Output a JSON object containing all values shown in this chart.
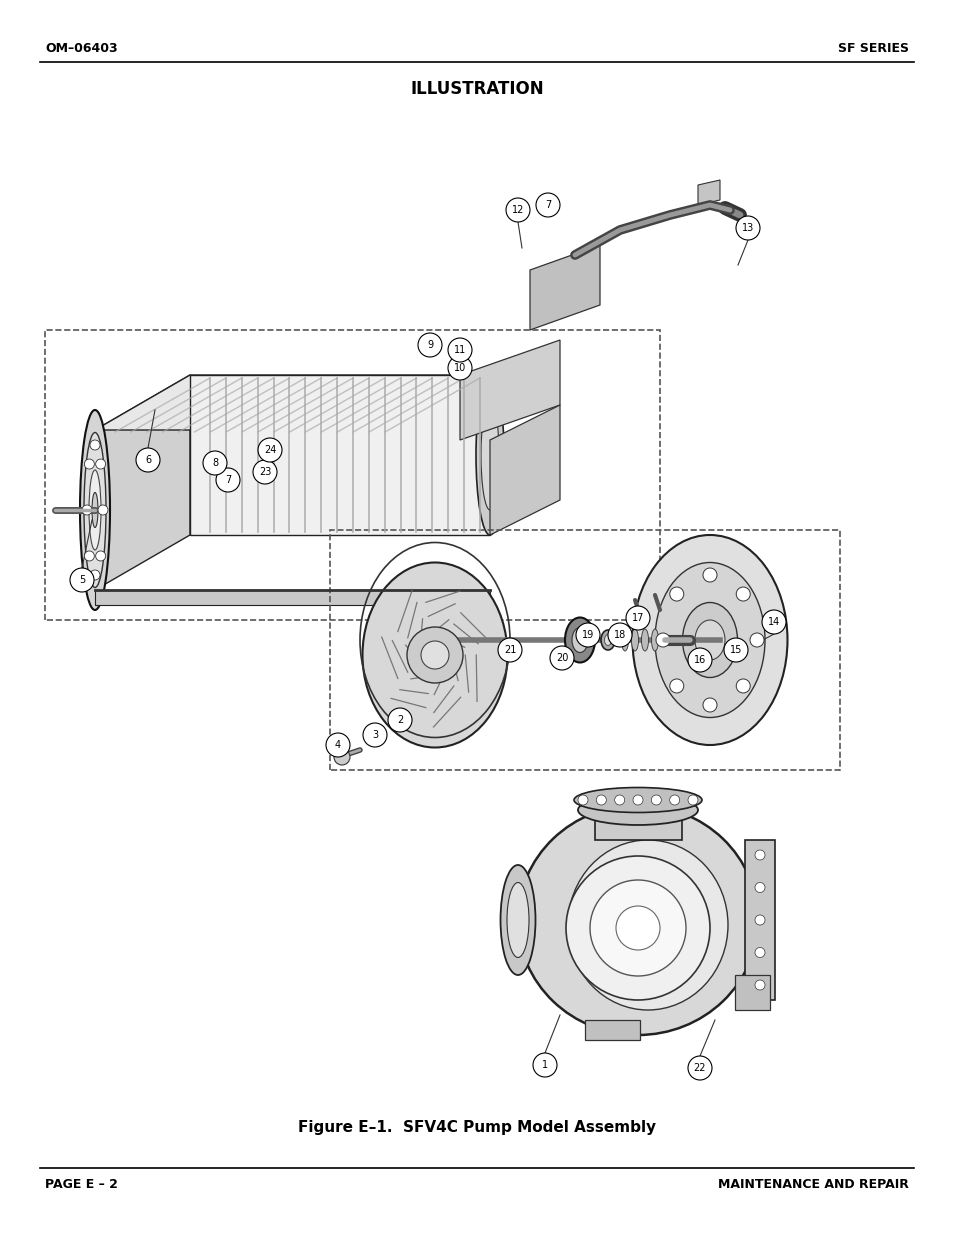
{
  "title": "ILLUSTRATION",
  "figure_caption": "Figure E–1.  SFV4C Pump Model Assembly",
  "header_left": "OM–06403",
  "header_right": "SF SERIES",
  "footer_left": "PAGE E – 2",
  "footer_right": "MAINTENANCE AND REPAIR",
  "bg_color": "#ffffff",
  "text_color": "#000000",
  "line_color": "#000000"
}
